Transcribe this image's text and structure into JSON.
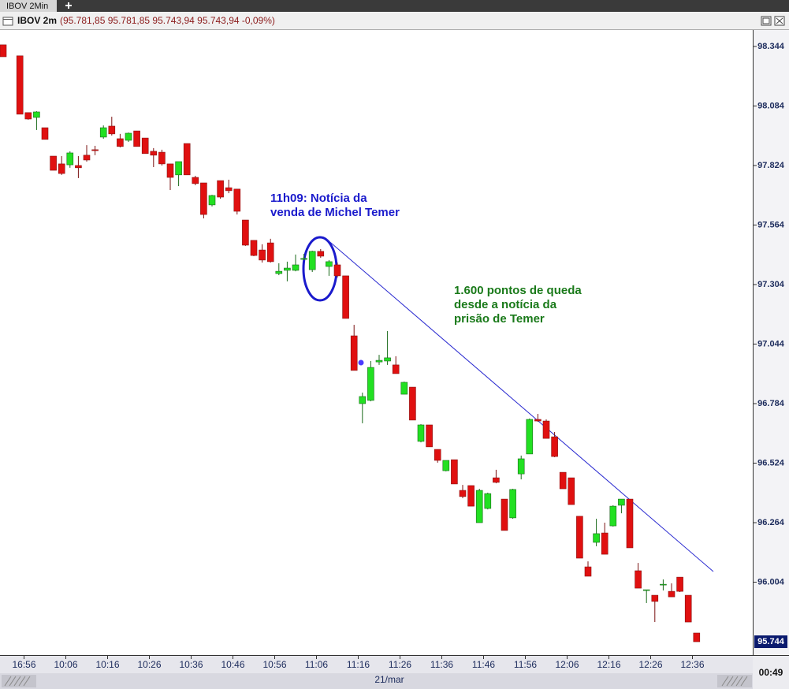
{
  "tab": "IBOV 2Min",
  "chart_data": {
    "type": "candlestick",
    "title": "IBOV 2m",
    "subtitle": "(95.781,85 95.781,85 95.743,94 95.743,94 -0,09%)",
    "categories": [
      null,
      null,
      "16:56",
      null,
      null,
      null,
      null,
      "10:06",
      null,
      null,
      null,
      null,
      "10:16",
      null,
      null,
      null,
      null,
      "10:26",
      null,
      null,
      null,
      null,
      "10:36",
      null,
      null,
      null,
      null,
      "10:46",
      null,
      null,
      null,
      null,
      "10:56",
      null,
      null,
      null,
      null,
      "11:06",
      null,
      null,
      null,
      null,
      "11:16",
      null,
      null,
      null,
      null,
      "11:26",
      null,
      null,
      null,
      null,
      "11:36",
      null,
      null,
      null,
      null,
      "11:46",
      null,
      null,
      null,
      null,
      "11:56",
      null,
      null,
      null,
      null,
      "12:06",
      null,
      null,
      null,
      null,
      "12:16",
      null,
      null,
      null,
      null,
      "12:26",
      null,
      null,
      null,
      null,
      "12:36",
      null
    ],
    "open": [
      98.351,
      null,
      98.303,
      98.055,
      98.034,
      97.989,
      97.865,
      97.831,
      97.827,
      97.824,
      97.869,
      97.893,
      97.948,
      97.996,
      97.941,
      97.934,
      97.975,
      97.944,
      97.886,
      97.882,
      97.831,
      97.783,
      97.92,
      97.772,
      97.748,
      97.652,
      97.758,
      97.727,
      97.721,
      97.586,
      97.497,
      97.455,
      97.486,
      97.352,
      97.366,
      97.366,
      97.414,
      97.369,
      97.449,
      97.383,
      97.39,
      97.342,
      97.08,
      96.784,
      96.798,
      96.966,
      96.97,
      96.953,
      96.825,
      96.856,
      96.619,
      96.691,
      96.584,
      96.491,
      96.539,
      96.405,
      96.426,
      96.264,
      96.326,
      96.46,
      96.367,
      96.285,
      96.477,
      96.564,
      96.715,
      96.708,
      96.639,
      96.484,
      96.46,
      96.292,
      96.071,
      96.178,
      96.219,
      96.25,
      96.34,
      96.367,
      96.054,
      95.971,
      95.947,
      95.995,
      95.964,
      96.026,
      95.947,
      95.782
    ],
    "high": [
      98.351,
      null,
      98.303,
      98.055,
      98.061,
      97.989,
      97.865,
      97.865,
      97.886,
      97.865,
      97.913,
      97.91,
      97.999,
      98.037,
      97.962,
      97.968,
      97.975,
      97.944,
      97.9,
      97.893,
      97.831,
      97.841,
      97.92,
      97.779,
      97.748,
      97.696,
      97.758,
      97.762,
      97.721,
      97.586,
      97.497,
      97.48,
      97.504,
      97.397,
      97.404,
      97.435,
      97.438,
      97.452,
      97.459,
      97.411,
      97.4,
      97.342,
      97.128,
      96.832,
      96.97,
      96.997,
      97.101,
      96.991,
      96.88,
      96.856,
      96.694,
      96.691,
      96.584,
      96.536,
      96.539,
      96.429,
      96.426,
      96.412,
      96.395,
      96.495,
      96.367,
      96.412,
      96.557,
      96.719,
      96.739,
      96.715,
      96.66,
      96.484,
      96.46,
      96.292,
      96.095,
      96.281,
      96.264,
      96.34,
      96.367,
      96.367,
      96.088,
      95.971,
      95.947,
      96.016,
      95.999,
      96.026,
      95.947,
      95.782
    ],
    "low": [
      98.299,
      null,
      98.048,
      98.024,
      97.979,
      97.938,
      97.803,
      97.783,
      97.814,
      97.769,
      97.841,
      97.869,
      97.941,
      97.955,
      97.903,
      97.927,
      97.907,
      97.876,
      97.817,
      97.824,
      97.717,
      97.734,
      97.783,
      97.738,
      97.593,
      97.645,
      97.679,
      97.703,
      97.61,
      97.473,
      97.428,
      97.4,
      97.4,
      97.345,
      97.318,
      97.362,
      97.411,
      97.359,
      97.421,
      97.342,
      97.335,
      97.156,
      96.929,
      96.698,
      96.794,
      96.953,
      96.953,
      96.915,
      96.825,
      96.712,
      96.615,
      96.595,
      96.526,
      96.488,
      96.433,
      96.371,
      96.336,
      96.264,
      96.322,
      96.436,
      96.23,
      96.281,
      96.453,
      96.564,
      96.705,
      96.632,
      96.55,
      96.412,
      96.343,
      96.109,
      96.03,
      96.161,
      96.126,
      96.247,
      96.305,
      96.154,
      95.978,
      95.913,
      95.83,
      95.968,
      95.94,
      95.961,
      95.83,
      95.744
    ],
    "close": [
      98.299,
      null,
      98.048,
      98.027,
      98.058,
      97.938,
      97.803,
      97.789,
      97.879,
      97.814,
      97.848,
      97.889,
      97.989,
      97.962,
      97.907,
      97.965,
      97.907,
      97.876,
      97.869,
      97.831,
      97.772,
      97.841,
      97.783,
      97.745,
      97.61,
      97.693,
      97.686,
      97.714,
      97.624,
      97.476,
      97.431,
      97.411,
      97.404,
      97.362,
      97.376,
      97.39,
      97.418,
      97.449,
      97.428,
      97.404,
      97.342,
      97.156,
      96.929,
      96.815,
      96.942,
      96.973,
      96.984,
      96.915,
      96.877,
      96.712,
      96.691,
      96.595,
      96.536,
      96.536,
      96.433,
      96.378,
      96.336,
      96.405,
      96.391,
      96.44,
      96.23,
      96.409,
      96.543,
      96.715,
      96.708,
      96.632,
      96.553,
      96.412,
      96.343,
      96.109,
      96.03,
      96.216,
      96.126,
      96.336,
      96.367,
      96.154,
      95.978,
      95.971,
      95.92,
      95.995,
      95.94,
      95.964,
      95.83,
      95.744
    ],
    "up_color": "#22e022",
    "down_color": "#e01010",
    "ylim": [
      95.689,
      98.416
    ],
    "yticks": [
      98.344,
      98.084,
      97.824,
      97.564,
      97.304,
      97.044,
      96.784,
      96.524,
      96.264,
      96.004
    ],
    "last_price": 95.744,
    "date_label": "21/mar",
    "annotations": [
      {
        "text": [
          "11h09: Notícia da",
          "venda de Michel Temer"
        ],
        "color": "#1a1acc"
      },
      {
        "text": [
          "1.600 pontos de queda",
          "desde a notícia da",
          "prisão de Temer"
        ],
        "color": "#1a7a1a"
      }
    ]
  },
  "clock": "00:49"
}
